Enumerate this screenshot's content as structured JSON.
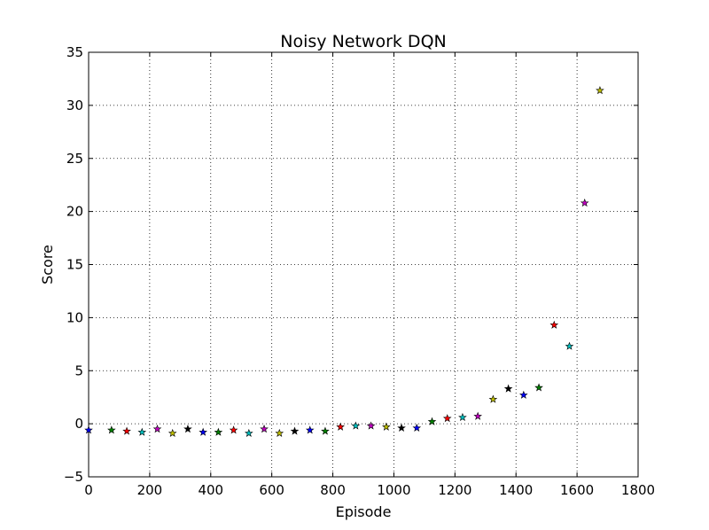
{
  "chart_data": {
    "type": "scatter",
    "title": "Noisy Network DQN",
    "xlabel": "Episode",
    "ylabel": "Score",
    "xlim": [
      0,
      1800
    ],
    "ylim": [
      -5,
      35
    ],
    "xticks": [
      0,
      200,
      400,
      600,
      800,
      1000,
      1200,
      1400,
      1600,
      1800
    ],
    "yticks": [
      -5,
      0,
      5,
      10,
      15,
      20,
      25,
      30,
      35
    ],
    "xtick_labels": [
      "0",
      "200",
      "400",
      "600",
      "800",
      "1000",
      "1200",
      "1400",
      "1600",
      "1800"
    ],
    "ytick_labels": [
      "−5",
      "0",
      "5",
      "10",
      "15",
      "20",
      "25",
      "30",
      "35"
    ],
    "grid": true,
    "marker": "star",
    "series": [
      {
        "x": [
          0,
          75,
          125,
          175,
          225,
          275,
          325,
          375,
          425,
          475,
          525,
          575,
          625,
          675,
          725,
          775,
          825,
          875,
          925,
          975,
          1025,
          1075,
          1125,
          1175,
          1225,
          1275,
          1325,
          1375,
          1425,
          1475,
          1525,
          1575,
          1625,
          1675
        ],
        "y": [
          -0.6,
          -0.6,
          -0.7,
          -0.8,
          -0.5,
          -0.9,
          -0.5,
          -0.8,
          -0.8,
          -0.6,
          -0.9,
          -0.5,
          -0.9,
          -0.7,
          -0.6,
          -0.7,
          -0.3,
          -0.2,
          -0.2,
          -0.3,
          -0.4,
          -0.4,
          0.2,
          0.5,
          0.6,
          0.7,
          2.3,
          3.3,
          2.7,
          3.4,
          9.3,
          7.3,
          20.8,
          31.4
        ],
        "colors": [
          "#0000ff",
          "#008000",
          "#ff0000",
          "#00bfbf",
          "#bf00bf",
          "#bfbf00",
          "#000000",
          "#0000ff",
          "#008000",
          "#ff0000",
          "#00bfbf",
          "#bf00bf",
          "#bfbf00",
          "#000000",
          "#0000ff",
          "#008000",
          "#ff0000",
          "#00bfbf",
          "#bf00bf",
          "#bfbf00",
          "#000000",
          "#0000ff",
          "#008000",
          "#ff0000",
          "#00bfbf",
          "#bf00bf",
          "#bfbf00",
          "#000000",
          "#0000ff",
          "#008000",
          "#ff0000",
          "#00bfbf",
          "#bf00bf",
          "#bfbf00"
        ]
      }
    ]
  }
}
